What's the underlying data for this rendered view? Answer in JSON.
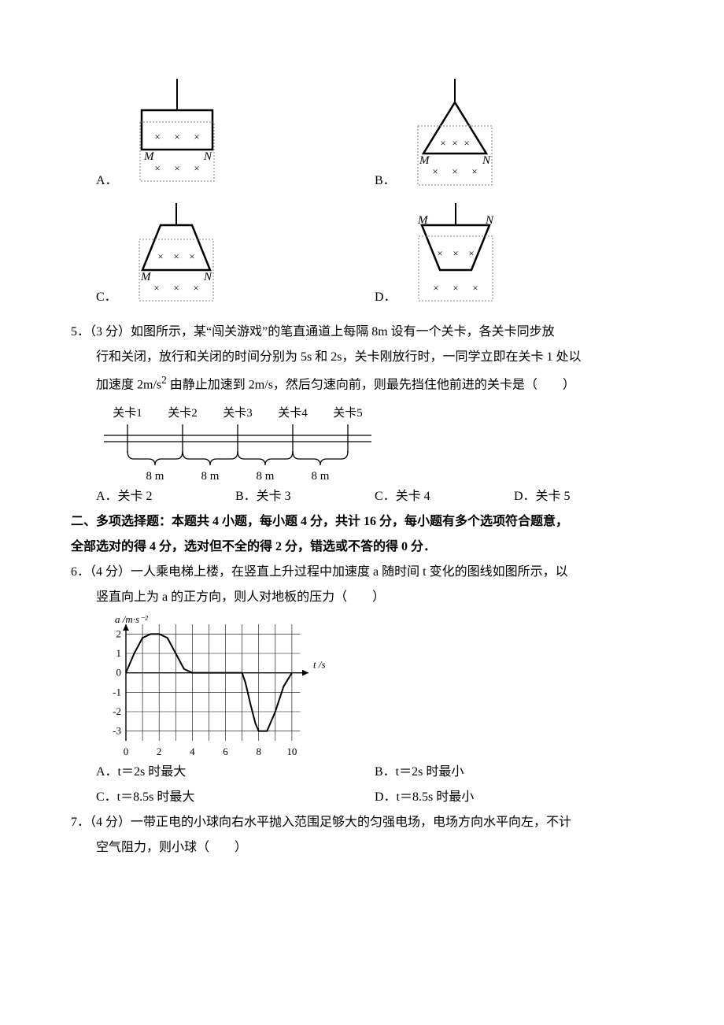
{
  "q4": {
    "options": {
      "A": "A．",
      "B": "B．",
      "C": "C．",
      "D": "D．"
    },
    "figA": {
      "box_stroke": "#000000",
      "box_fill": "none",
      "dash_color": "#808080",
      "x_color": "#000000",
      "M": "M",
      "N": "N"
    },
    "figB": {
      "M": "M",
      "N": "N"
    },
    "figC": {
      "M": "M",
      "N": "N"
    },
    "figD": {
      "M": "M",
      "N": "N"
    }
  },
  "q5": {
    "number": "5．",
    "points": "（3 分）",
    "line1": "如图所示，某“闯关游戏”的笔直通道上每隔 8m 设有一个关卡，各关卡同步放",
    "line2": "行和关闭，放行和关闭的时间分别为 5s 和 2s，关卡刚放行时，一同学立即在关卡 1 处以",
    "line3a": "加速度 2m/s",
    "line3b": " 由静止加速到 2m/s，然后匀速向前，则最先挡住他前进的关卡是（　　）",
    "sup": "2",
    "fig": {
      "labels": [
        "关卡1",
        "关卡2",
        "关卡3",
        "关卡4",
        "关卡5"
      ],
      "dist": "8 m",
      "line_color": "#000000"
    },
    "choices": {
      "A": "A．关卡 2",
      "B": "B．关卡 3",
      "C": "C．关卡 4",
      "D": "D．关卡 5"
    }
  },
  "section2": {
    "line1": "二、多项选择题：本题共 4 小题，每小题 4 分，共计 16 分，每小题有多个选项符合题意，",
    "line2": "全部选对的得 4 分，选对但不全的得 2 分，错选或不答的得 0 分．"
  },
  "q6": {
    "number": "6．",
    "points": "（4 分）",
    "line1": "一人乘电梯上楼，在竖直上升过程中加速度 a 随时间 t 变化的图线如图所示，以",
    "line2": "竖直向上为 a 的正方向，则人对地板的压力（　　）",
    "figure": {
      "ylabel": "a /m·s⁻²",
      "xlabel": "t /s",
      "yticks": [
        -3,
        -2,
        -1,
        0,
        1,
        2
      ],
      "xticks": [
        0,
        2,
        4,
        6,
        8,
        10
      ],
      "grid_color": "#000000",
      "curve_color": "#000000",
      "bg": "#ffffff",
      "xlim": [
        0,
        11
      ],
      "ylim": [
        -3.5,
        2.5
      ],
      "curve": [
        [
          0,
          0
        ],
        [
          0.5,
          1.0
        ],
        [
          1.0,
          1.8
        ],
        [
          1.5,
          2.0
        ],
        [
          2.0,
          2.0
        ],
        [
          2.5,
          1.8
        ],
        [
          3.0,
          1.0
        ],
        [
          3.5,
          0.2
        ],
        [
          4.0,
          0
        ],
        [
          5.0,
          0
        ],
        [
          6.0,
          0
        ],
        [
          7.0,
          0
        ],
        [
          7.2,
          -0.5
        ],
        [
          7.5,
          -1.6
        ],
        [
          7.8,
          -2.6
        ],
        [
          8.0,
          -3.0
        ],
        [
          8.3,
          -3.0
        ],
        [
          8.5,
          -3.0
        ],
        [
          9.0,
          -2.0
        ],
        [
          9.5,
          -0.7
        ],
        [
          10.0,
          0
        ]
      ]
    },
    "choices": {
      "A": "A．t＝2s 时最大",
      "B": "B．t＝2s 时最小",
      "C": "C．t＝8.5s 时最大",
      "D": "D．t＝8.5s 时最小"
    }
  },
  "q7": {
    "number": "7．",
    "points": "（4 分）",
    "line1": "一带正电的小球向右水平抛入范围足够大的匀强电场，电场方向水平向左，不计",
    "line2": "空气阻力，则小球（　　）"
  },
  "colors": {
    "text": "#000000",
    "bg": "#ffffff"
  }
}
